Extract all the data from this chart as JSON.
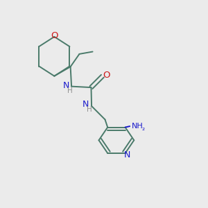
{
  "bg_color": "#ebebeb",
  "bond_color": "#4a7a6a",
  "N_color": "#1a1acc",
  "O_color": "#cc1a1a",
  "H_color": "#909090",
  "line_width": 1.4,
  "font_size": 8.5,
  "figsize": [
    3.0,
    3.0
  ],
  "dpi": 100,
  "ring_r": 0.095,
  "pyridine_r": 0.085,
  "xlim": [
    0.0,
    1.0
  ],
  "ylim": [
    0.0,
    1.0
  ]
}
